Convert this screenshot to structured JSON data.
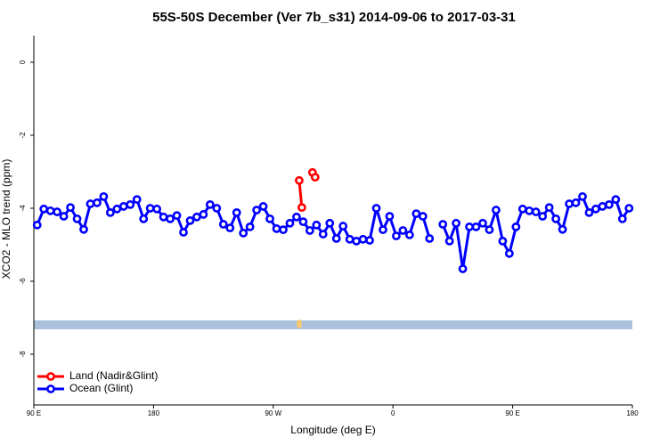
{
  "chart_data": {
    "type": "line",
    "title": "55S-50S December (Ver 7b_s31)   2014-09-06 to 2017-03-31",
    "x_label": "Longitude (deg E)",
    "y_label": "XCO2 - MLO trend (ppm)",
    "xlim": [
      90,
      540
    ],
    "ylim": [
      -9.39,
      0.73
    ],
    "xticks": [
      {
        "value": 90,
        "label": "90 E"
      },
      180,
      {
        "value": 270,
        "label": "90 W"
      },
      {
        "value": 360,
        "label": "0"
      },
      {
        "value": 450,
        "label": "90 E"
      },
      {
        "value": 540,
        "label": "180"
      }
    ],
    "yticks": [
      0,
      -2,
      -4,
      -6,
      -8
    ],
    "legend": "bottom-left",
    "series": [
      {
        "name": "Land (Nadir&Glint)",
        "color": "#ff0000",
        "x": [
          289.5,
          291.5,
          295.5,
          299.5,
          301.5
        ],
        "values": [
          -3.24,
          -3.98,
          null,
          -3.02,
          -3.15
        ]
      },
      {
        "name": "Ocean (Glint)",
        "color": "#0000ff",
        "x": [
          92.5,
          97.5,
          102.5,
          107.5,
          112.5,
          117.5,
          122.5,
          127.5,
          132.5,
          137.5,
          142.5,
          147.5,
          152.5,
          157.5,
          162.5,
          167.5,
          172.5,
          177.5,
          182.5,
          187.5,
          192.5,
          197.5,
          202.5,
          207.5,
          212.5,
          217.5,
          222.5,
          227.5,
          232.5,
          237.5,
          242.5,
          247.5,
          252.5,
          257.5,
          262.5,
          267.5,
          272.5,
          277.5,
          282.5,
          287.5,
          292.5,
          297.5,
          302.5,
          307.5,
          312.5,
          317.5,
          322.5,
          327.5,
          332.5,
          337.5,
          342.5,
          347.5,
          352.5,
          357.5,
          362.5,
          367.5,
          372.5,
          377.5,
          382.5,
          387.5,
          392.5,
          397.5,
          402.5,
          407.5,
          412.5,
          417.5,
          422.5,
          427.5,
          432.5,
          437.5,
          442.5,
          447.5,
          452.5,
          457.5,
          462.5,
          467.5,
          472.5,
          477.5,
          482.5,
          487.5,
          492.5,
          497.5,
          502.5,
          507.5,
          512.5,
          517.5,
          522.5,
          527.5,
          532.5,
          537.5
        ],
        "values": [
          -4.46,
          -4.02,
          -4.07,
          -4.1,
          -4.22,
          -3.98,
          -4.29,
          -4.58,
          -3.88,
          -3.85,
          -3.68,
          -4.12,
          -4.02,
          -3.95,
          -3.9,
          -3.76,
          -4.29,
          -4.0,
          -4.02,
          -4.24,
          -4.29,
          -4.2,
          -4.66,
          -4.34,
          -4.24,
          -4.17,
          -3.9,
          -4.0,
          -4.44,
          -4.54,
          -4.12,
          -4.68,
          -4.51,
          -4.05,
          -3.95,
          -4.29,
          -4.56,
          -4.59,
          -4.41,
          -4.24,
          -4.37,
          -4.61,
          -4.46,
          -4.71,
          -4.41,
          -4.83,
          -4.49,
          -4.85,
          -4.9,
          -4.85,
          -4.88,
          -4.0,
          -4.59,
          -4.22,
          -4.76,
          -4.61,
          -4.73,
          -4.15,
          -4.22,
          -4.83,
          null,
          -4.44,
          -4.9,
          -4.41,
          -5.66,
          -4.51,
          -4.51,
          -4.41,
          -4.59,
          -4.05,
          -4.9,
          -5.24,
          -4.51,
          -4.02,
          -4.07,
          -4.1,
          -4.22,
          -3.98,
          -4.29,
          -4.58,
          -3.88,
          -3.85,
          -3.68,
          -4.12,
          -4.02,
          -3.95,
          -3.9,
          -3.76,
          -4.29,
          -4.0
        ]
      }
    ]
  }
}
